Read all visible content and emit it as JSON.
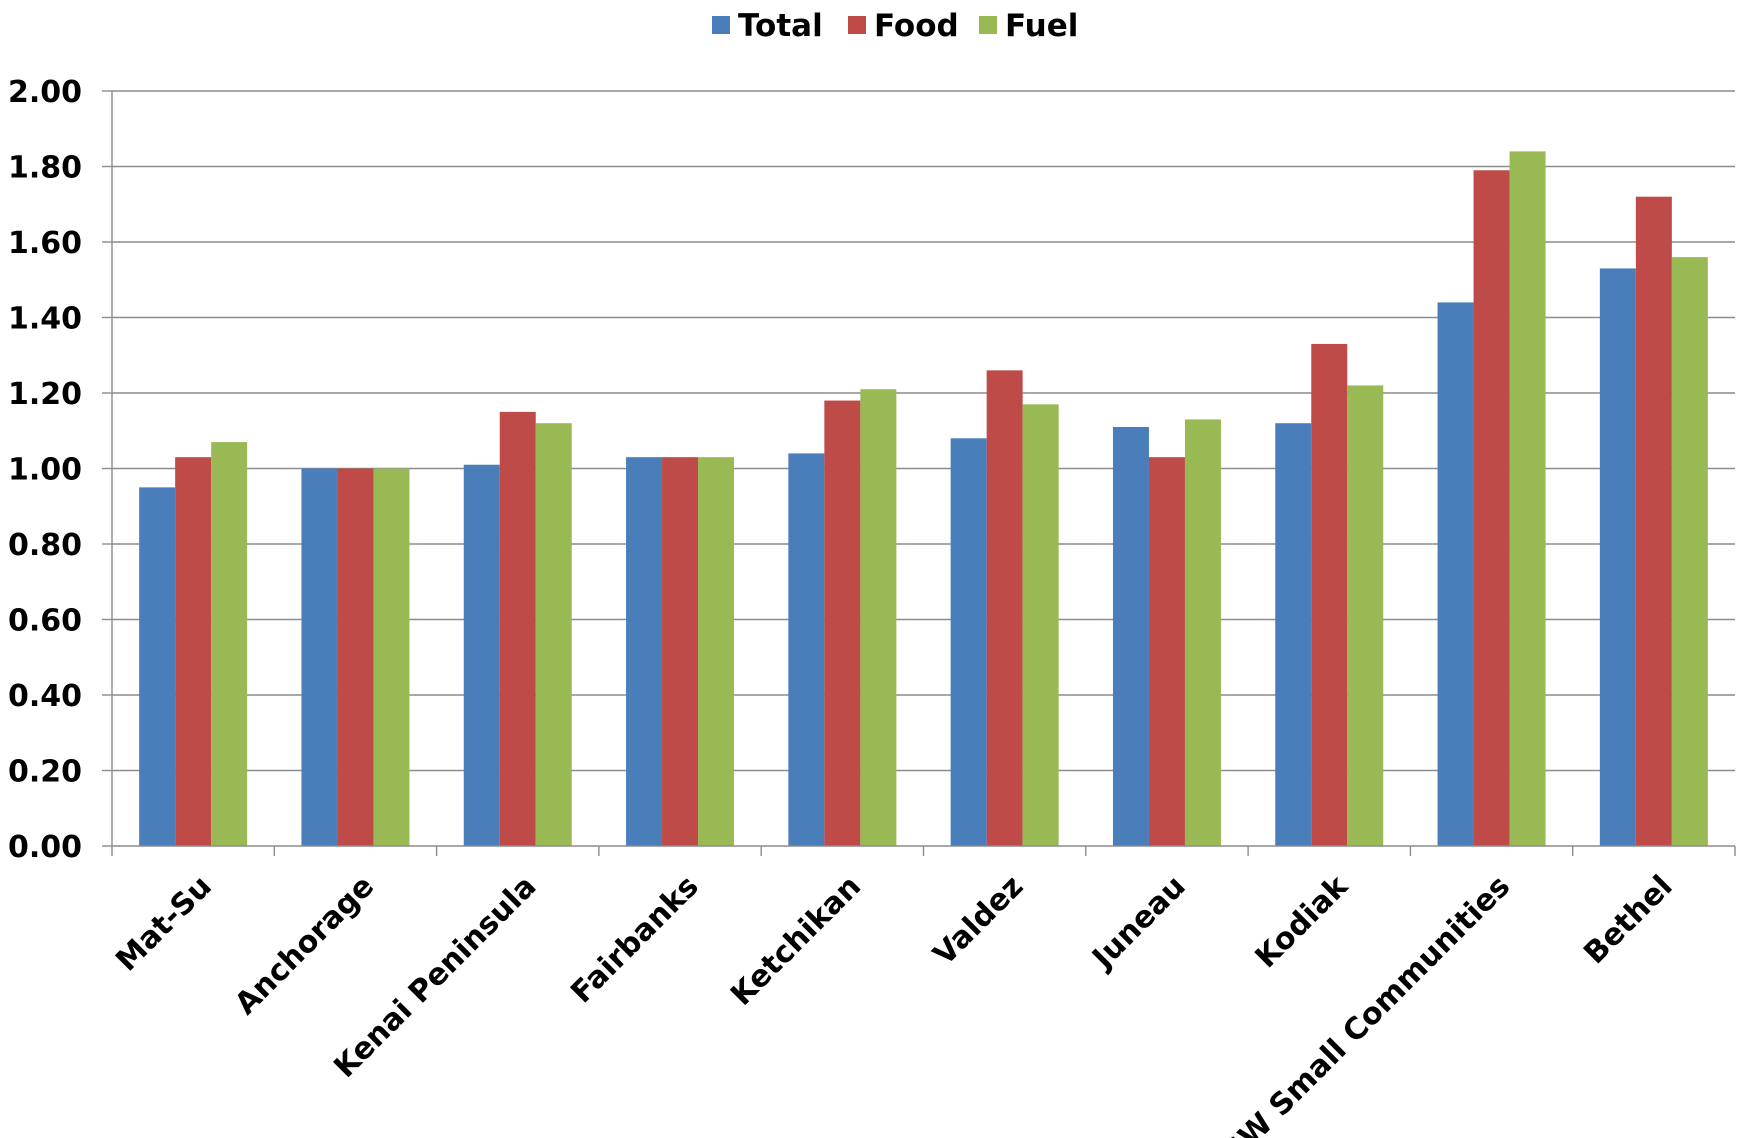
{
  "chart_data": {
    "type": "bar",
    "title": "",
    "xlabel": "",
    "ylabel": "",
    "ylim": [
      0,
      2
    ],
    "yticks": [
      "0.00",
      "0.20",
      "0.40",
      "0.60",
      "0.80",
      "1.00",
      "1.20",
      "1.40",
      "1.60",
      "1.80",
      "2.00"
    ],
    "grid": true,
    "legend_position": "top",
    "categories": [
      "Mat-Su",
      "Anchorage",
      "Kenai Peninsula",
      "Fairbanks",
      "Ketchikan",
      "Valdez",
      "Juneau",
      "Kodiak",
      "SW Small Communities",
      "Bethel"
    ],
    "series": [
      {
        "name": "Total",
        "color": "#4a7ebb",
        "values": [
          0.95,
          1.0,
          1.01,
          1.03,
          1.04,
          1.08,
          1.11,
          1.12,
          1.44,
          1.53
        ]
      },
      {
        "name": "Food",
        "color": "#be4b48",
        "values": [
          1.03,
          1.0,
          1.15,
          1.03,
          1.18,
          1.26,
          1.03,
          1.33,
          1.79,
          1.72
        ]
      },
      {
        "name": "Fuel",
        "color": "#98b954",
        "values": [
          1.07,
          1.0,
          1.12,
          1.03,
          1.21,
          1.17,
          1.13,
          1.22,
          1.84,
          1.56
        ]
      }
    ]
  }
}
